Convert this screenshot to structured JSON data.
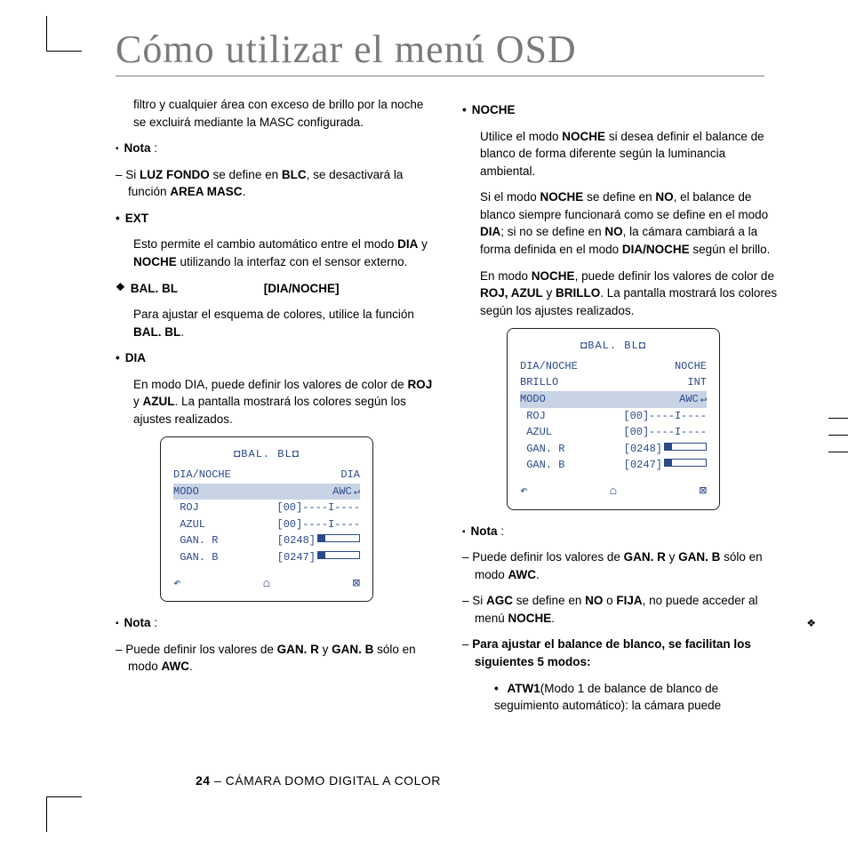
{
  "title": "Cómo utilizar el menú OSD",
  "left": {
    "intro": "filtro y cualquier área con exceso de brillo por la noche se excluirá mediante la MASC configurada.",
    "nota1_label": "Nota",
    "nota1_text_pre": "Si ",
    "nota1_b1": "LUZ FONDO",
    "nota1_mid": " se define en ",
    "nota1_b2": "BLC",
    "nota1_post": ", se desactivará la función ",
    "nota1_b3": "AREA MASC",
    "nota1_end": ".",
    "ext_label": "EXT",
    "ext_text_pre": "Esto permite el cambio automático entre el modo ",
    "ext_b1": "DIA",
    "ext_mid": " y ",
    "ext_b2": "NOCHE",
    "ext_post": " utilizando la interfaz con el sensor externo.",
    "balbl_label": "BAL. BL",
    "balbl_right": "[DIA/NOCHE]",
    "balbl_text_pre": "Para ajustar el esquema de colores, utilice la función ",
    "balbl_b": "BAL. BL",
    "balbl_end": ".",
    "dia_label": "DIA",
    "dia_text_pre": "En modo DIA, puede definir los valores de color de ",
    "dia_b1": "ROJ",
    "dia_mid": " y ",
    "dia_b2": "AZUL",
    "dia_post": ". La pantalla mostrará los colores según los ajustes realizados.",
    "nota2_label": "Nota",
    "nota2_text_pre": "Puede definir los valores de ",
    "nota2_b1": "GAN. R",
    "nota2_mid": " y ",
    "nota2_b2": "GAN. B",
    "nota2_post": " sólo en modo ",
    "nota2_b3": "AWC",
    "nota2_end": "."
  },
  "right": {
    "noche_label": "NOCHE",
    "p1_pre": "Utilice el modo ",
    "p1_b1": "NOCHE",
    "p1_post": " si desea definir el balance de blanco de forma diferente según la luminancia ambiental.",
    "p2_pre": "Si el modo ",
    "p2_b1": "NOCHE",
    "p2_m1": " se define en ",
    "p2_b2": "NO",
    "p2_m2": ", el balance de blanco siempre funcionará como se define en el modo ",
    "p2_b3": "DIA",
    "p2_m3": "; si no se define en ",
    "p2_b4": "NO",
    "p2_m4": ", la cámara cambiará a la forma definida en el modo ",
    "p2_b5": "DIA/NOCHE",
    "p2_post": " según el brillo.",
    "p3_pre": "En modo ",
    "p3_b1": "NOCHE",
    "p3_m1": ", puede definir los valores de color de ",
    "p3_b2": "ROJ, AZUL",
    "p3_m2": " y ",
    "p3_b3": "BRILLO",
    "p3_post": ". La pantalla mostrará los colores según los ajustes realizados.",
    "nota_label": "Nota",
    "n1_pre": "Puede definir los valores de ",
    "n1_b1": "GAN. R",
    "n1_mid": " y ",
    "n1_b2": "GAN. B",
    "n1_post": " sólo en modo ",
    "n1_b3": "AWC",
    "n1_end": ".",
    "n2_pre": "Si ",
    "n2_b1": "AGC",
    "n2_m1": " se define en ",
    "n2_b2": "NO",
    "n2_m2": " o ",
    "n2_b3": "FIJA",
    "n2_post": ", no puede acceder al menú ",
    "n2_b4": "NOCHE",
    "n2_end": ".",
    "modes_intro": "Para ajustar el balance de blanco, se facilitan los siguientes 5 modos:",
    "atw_b": "ATW1",
    "atw_post": "(Modo 1 de balance de blanco de seguimiento automático): la cámara puede"
  },
  "osd1": {
    "title": "◘BAL. BL◘",
    "r1l": "DIA/NOCHE",
    "r1r": "DIA",
    "r2l": "MODO",
    "r2r": "AWC",
    "r3l": " ROJ",
    "r3r": "[00]----I----",
    "r4l": " AZUL",
    "r4r": "[00]----I----",
    "r5l": " GAN. R",
    "r5r": "[0248]",
    "r6l": " GAN. B",
    "r6r": "[0247]",
    "i1": "↶",
    "i2": "⌂",
    "i3": "⊠"
  },
  "osd2": {
    "title": "◘BAL. BL◘",
    "r1l": "DIA/NOCHE",
    "r1r": "NOCHE",
    "r2l": "BRILLO",
    "r2r": "INT",
    "r3l": "MODO",
    "r3r": "AWC",
    "r4l": " ROJ",
    "r4r": "[00]----I----",
    "r5l": " AZUL",
    "r5r": "[00]----I----",
    "r6l": " GAN. R",
    "r6r": "[0248]",
    "r7l": " GAN. B",
    "r7r": "[0247]",
    "i1": "↶",
    "i2": "⌂",
    "i3": "⊠"
  },
  "footer_num": "24",
  "footer_text": " – CÁMARA DOMO DIGITAL A COLOR"
}
